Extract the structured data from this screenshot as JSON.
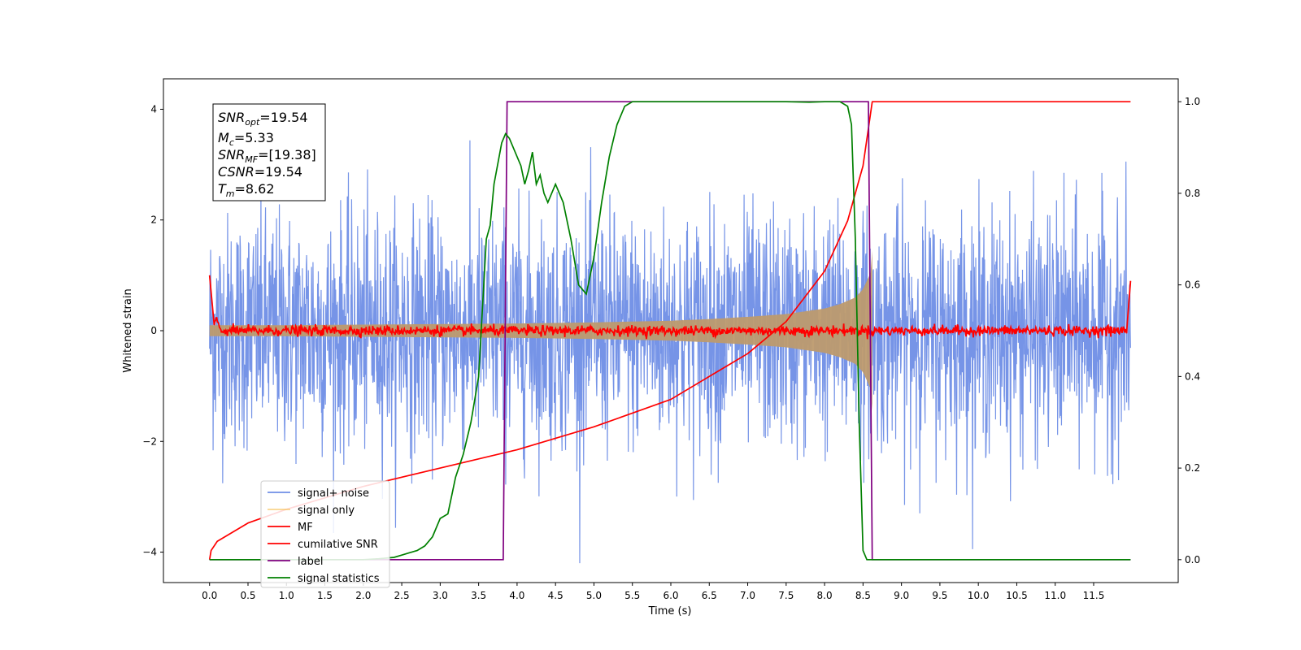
{
  "chart_data": {
    "type": "line",
    "xlabel": "Time (s)",
    "ylabel": "Whitened strain",
    "xlim": [
      -0.6,
      12.6
    ],
    "ylim": [
      -4.55,
      4.55
    ],
    "y2lim": [
      -0.05,
      1.05
    ],
    "x_ticks": [
      "0.0",
      "0.5",
      "1.0",
      "1.5",
      "2.0",
      "2.5",
      "3.0",
      "3.5",
      "4.0",
      "4.5",
      "5.0",
      "5.5",
      "6.0",
      "6.5",
      "7.0",
      "7.5",
      "8.0",
      "8.5",
      "9.0",
      "9.5",
      "10.0",
      "10.5",
      "11.0",
      "11.5"
    ],
    "y_ticks": [
      "4",
      "2",
      "0",
      "−2",
      "−4"
    ],
    "y2_ticks": [
      "1.0",
      "0.8",
      "0.6",
      "0.4",
      "0.2",
      "0.0"
    ],
    "legend_position": "lower-left",
    "colors": {
      "signal_noise": "#6f8ee6",
      "signal_only": "#f5b940",
      "mf": "#ff0000",
      "cumulative_snr": "#ff0000",
      "label": "#800080",
      "signal_statistics": "#008000"
    },
    "series": [
      {
        "name": "signal+ noise",
        "key": "signal_noise",
        "axis": "left",
        "description_range": [
          0,
          11.98
        ]
      },
      {
        "name": "signal only",
        "key": "signal_only",
        "axis": "left",
        "envelope_t": [
          0,
          1,
          2,
          3,
          4,
          5,
          6,
          6.5,
          7,
          7.5,
          8.0,
          8.2,
          8.4,
          8.5,
          8.6,
          8.62
        ],
        "envelope_amp": [
          0.1,
          0.1,
          0.11,
          0.12,
          0.13,
          0.15,
          0.18,
          0.21,
          0.25,
          0.3,
          0.4,
          0.48,
          0.6,
          0.75,
          1.05,
          1.45
        ]
      },
      {
        "name": "MF",
        "key": "mf",
        "axis": "left"
      },
      {
        "name": "cumilative SNR",
        "key": "cumulative_snr",
        "axis": "right",
        "x": [
          0,
          0.02,
          0.1,
          0.5,
          1,
          2,
          3,
          4,
          5,
          6,
          7,
          7.5,
          8.0,
          8.3,
          8.5,
          8.62,
          11.98
        ],
        "y": [
          0.0,
          0.02,
          0.04,
          0.08,
          0.11,
          0.16,
          0.2,
          0.24,
          0.29,
          0.35,
          0.45,
          0.52,
          0.63,
          0.74,
          0.86,
          1.0,
          1.0
        ]
      },
      {
        "name": "label",
        "key": "label",
        "axis": "right",
        "x": [
          0,
          3.82,
          3.87,
          8.57,
          8.62,
          11.98
        ],
        "y": [
          0,
          0,
          1,
          1,
          0,
          0
        ]
      },
      {
        "name": "signal statistics",
        "key": "signal_statistics",
        "axis": "right",
        "x": [
          0,
          0.5,
          1.0,
          1.5,
          2.0,
          2.2,
          2.4,
          2.5,
          2.6,
          2.7,
          2.8,
          2.9,
          3.0,
          3.1,
          3.15,
          3.2,
          3.3,
          3.4,
          3.5,
          3.55,
          3.6,
          3.65,
          3.7,
          3.8,
          3.85,
          3.9,
          3.95,
          4.0,
          4.05,
          4.1,
          4.15,
          4.2,
          4.25,
          4.3,
          4.35,
          4.4,
          4.5,
          4.55,
          4.6,
          4.7,
          4.8,
          4.9,
          4.95,
          5.0,
          5.1,
          5.2,
          5.3,
          5.4,
          5.5,
          5.6,
          6.0,
          6.5,
          7.0,
          7.5,
          7.8,
          8.0,
          8.2,
          8.3,
          8.35,
          8.4,
          8.45,
          8.5,
          8.55,
          8.6,
          8.7,
          11.98
        ],
        "y": [
          0.0,
          0.0,
          0.0,
          0.0,
          0.0,
          0.002,
          0.005,
          0.01,
          0.015,
          0.02,
          0.03,
          0.05,
          0.09,
          0.1,
          0.14,
          0.18,
          0.23,
          0.3,
          0.4,
          0.55,
          0.7,
          0.73,
          0.82,
          0.91,
          0.93,
          0.92,
          0.9,
          0.88,
          0.86,
          0.82,
          0.85,
          0.89,
          0.82,
          0.84,
          0.8,
          0.78,
          0.82,
          0.8,
          0.78,
          0.7,
          0.6,
          0.58,
          0.62,
          0.66,
          0.78,
          0.88,
          0.95,
          0.99,
          1.0,
          1.0,
          1.0,
          1.0,
          1.0,
          1.0,
          0.999,
          1.0,
          1.0,
          0.99,
          0.95,
          0.7,
          0.3,
          0.02,
          0.0,
          0.0,
          0.0,
          0.0
        ]
      }
    ],
    "annotation": {
      "snr_opt": {
        "main": "SNR",
        "sub": "opt",
        "value": "=19.54"
      },
      "mc": {
        "main": "M",
        "sub": "c",
        "value": "=5.33"
      },
      "snr_mf": {
        "main": "SNR",
        "sub": "MF",
        "value": "=[19.38]"
      },
      "csnr": {
        "main": "CSNR",
        "value": "=19.54"
      },
      "tm": {
        "main": "T",
        "sub": "m",
        "value": "=8.62"
      }
    }
  }
}
